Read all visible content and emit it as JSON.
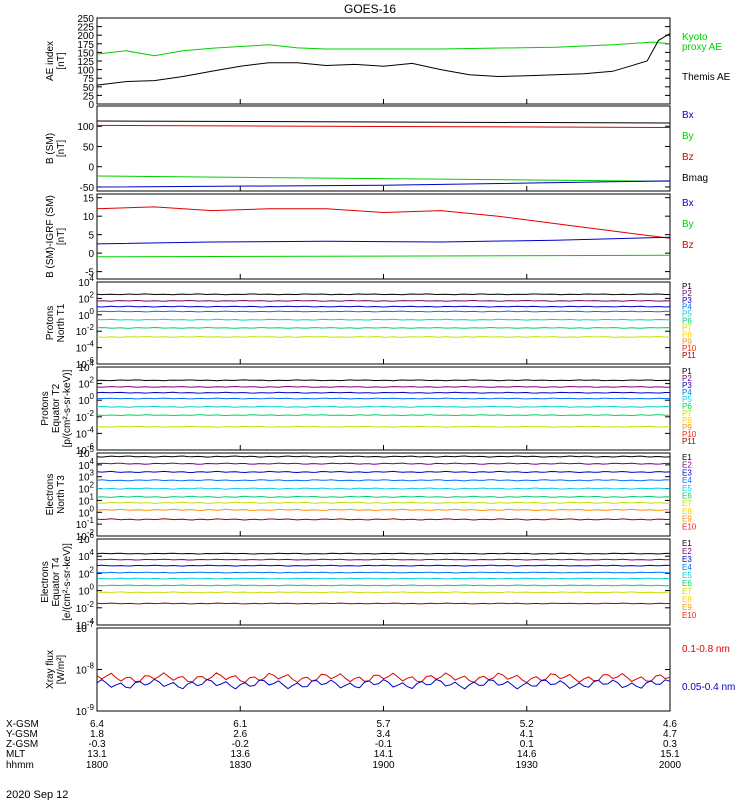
{
  "title": "GOES-16",
  "colors": {
    "black": "#000000",
    "red": "#e00000",
    "green": "#00d000",
    "blue": "#0000c8",
    "P1": "#000000",
    "P2": "#7a007a",
    "P3": "#0000c8",
    "P4": "#0070ff",
    "P5": "#00d0e0",
    "P6": "#00d070",
    "P7": "#c8e000",
    "P8": "#ffd000",
    "P9": "#ff9000",
    "P10": "#ff2000",
    "P11": "#a00000"
  },
  "x_axis": {
    "rows": [
      {
        "label": "X-GSM",
        "values": [
          "6.4",
          "6.1",
          "5.7",
          "5.2",
          "4.6"
        ]
      },
      {
        "label": "Y-GSM",
        "values": [
          "1.8",
          "2.6",
          "3.4",
          "4.1",
          "4.7"
        ]
      },
      {
        "label": "Z-GSM",
        "values": [
          "-0.3",
          "-0.2",
          "-0.1",
          "0.1",
          "0.3"
        ]
      },
      {
        "label": "MLT",
        "values": [
          "13.1",
          "13.6",
          "14.1",
          "14.6",
          "15.1"
        ]
      },
      {
        "label": "hhmm",
        "values": [
          "1800",
          "1830",
          "1900",
          "1930",
          "2000"
        ]
      }
    ],
    "date": "2020 Sep 12"
  },
  "chart_data": [
    {
      "type": "line",
      "ylabel": [
        "AE index",
        "[nT]"
      ],
      "ylim": [
        0,
        250
      ],
      "yticks": [
        "0",
        "25",
        "50",
        "75",
        "100",
        "125",
        "150",
        "175",
        "200",
        "225",
        "250"
      ],
      "legend": [
        {
          "text": "Kyoto",
          "color": "green"
        },
        {
          "text": "proxy AE",
          "color": "green"
        },
        {
          "text": "Themis AE",
          "color": "black"
        }
      ],
      "series": [
        {
          "name": "Kyoto proxy AE",
          "color": "green",
          "x": [
            0,
            0.05,
            0.1,
            0.15,
            0.2,
            0.3,
            0.35,
            0.4,
            0.6,
            0.8,
            0.9,
            0.97,
            1
          ],
          "y": [
            145,
            155,
            140,
            155,
            162,
            172,
            163,
            160,
            160,
            165,
            172,
            180,
            175
          ]
        },
        {
          "name": "Themis AE",
          "color": "black",
          "x": [
            0,
            0.05,
            0.1,
            0.15,
            0.2,
            0.25,
            0.3,
            0.35,
            0.4,
            0.45,
            0.5,
            0.55,
            0.6,
            0.65,
            0.7,
            0.75,
            0.8,
            0.85,
            0.9,
            0.93,
            0.96,
            0.98,
            1
          ],
          "y": [
            55,
            65,
            68,
            80,
            95,
            110,
            120,
            120,
            112,
            115,
            110,
            118,
            100,
            85,
            80,
            82,
            85,
            88,
            95,
            110,
            125,
            185,
            205
          ]
        }
      ]
    },
    {
      "type": "line",
      "ylabel": [
        "B (SM)",
        "[nT]"
      ],
      "ylim": [
        -60,
        150
      ],
      "yticks": [
        "-50",
        "0",
        "50",
        "100"
      ],
      "ytick_values": [
        -50,
        0,
        50,
        100
      ],
      "legend": [
        {
          "text": "Bx",
          "color": "blue"
        },
        {
          "text": "By",
          "color": "green"
        },
        {
          "text": "Bz",
          "color": "red"
        },
        {
          "text": "Bmag",
          "color": "black"
        }
      ],
      "series": [
        {
          "name": "Bmag",
          "color": "black",
          "x": [
            0,
            1
          ],
          "y": [
            113,
            108
          ]
        },
        {
          "name": "Bz",
          "color": "red",
          "x": [
            0,
            1
          ],
          "y": [
            102,
            97
          ]
        },
        {
          "name": "By",
          "color": "green",
          "x": [
            0,
            1
          ],
          "y": [
            -23,
            -36
          ]
        },
        {
          "name": "Bx",
          "color": "blue",
          "x": [
            0,
            0.5,
            1
          ],
          "y": [
            -50,
            -46,
            -35
          ]
        }
      ]
    },
    {
      "type": "line",
      "ylabel": [
        "B (SM)-IGRF (SM)",
        "[nT]"
      ],
      "ylim": [
        -7,
        16
      ],
      "yticks": [
        "-5",
        "0",
        "5",
        "10",
        "15"
      ],
      "ytick_values": [
        -5,
        0,
        5,
        10,
        15
      ],
      "legend": [
        {
          "text": "Bx",
          "color": "blue"
        },
        {
          "text": "By",
          "color": "green"
        },
        {
          "text": "Bz",
          "color": "red"
        }
      ],
      "series": [
        {
          "name": "Bz",
          "color": "red",
          "x": [
            0,
            0.1,
            0.2,
            0.3,
            0.4,
            0.5,
            0.6,
            0.7,
            0.8,
            0.9,
            1
          ],
          "y": [
            12,
            12.5,
            11.5,
            12,
            12,
            11,
            11.5,
            10,
            8,
            6,
            4
          ]
        },
        {
          "name": "Bx",
          "color": "blue",
          "x": [
            0,
            0.2,
            0.4,
            0.6,
            0.8,
            1
          ],
          "y": [
            2.5,
            3,
            3.2,
            3,
            3.5,
            4.3
          ]
        },
        {
          "name": "By",
          "color": "green",
          "x": [
            0,
            0.5,
            1
          ],
          "y": [
            -1,
            -0.8,
            -0.6
          ]
        }
      ]
    },
    {
      "type": "line",
      "log": true,
      "ylabel": [
        "Protons",
        "North T1"
      ],
      "ylim_exp": [
        -6,
        4
      ],
      "yticks_exp": [
        4,
        2,
        0,
        -2,
        -4,
        -6
      ],
      "legend_labels": [
        "P1",
        "P2",
        "P3",
        "P4",
        "P5",
        "P6",
        "P7",
        "P8",
        "P9",
        "P10",
        "P11"
      ],
      "series": [
        {
          "name": "P1",
          "color": "P1",
          "level": 2.5
        },
        {
          "name": "P2",
          "color": "P2",
          "level": 1.7
        },
        {
          "name": "P3",
          "color": "P3",
          "level": 1.0
        },
        {
          "name": "P4",
          "color": "P4",
          "level": 0.4
        },
        {
          "name": "P5",
          "color": "P5",
          "level": -0.6
        },
        {
          "name": "P6",
          "color": "P6",
          "level": -1.6
        },
        {
          "name": "P8",
          "color": "P7",
          "level": -2.7
        }
      ]
    },
    {
      "type": "line",
      "log": true,
      "ylabel": [
        "Protons",
        "Equator T2",
        "[p/(cm²-s-sr-keV)]"
      ],
      "ylim_exp": [
        -6,
        4
      ],
      "yticks_exp": [
        4,
        2,
        0,
        -2,
        -4,
        -6
      ],
      "legend_labels": [
        "P1",
        "P2",
        "P3",
        "P4",
        "P5",
        "P6",
        "P7",
        "P8",
        "P9",
        "P10",
        "P11"
      ],
      "series": [
        {
          "name": "P1",
          "color": "P1",
          "level": 2.4
        },
        {
          "name": "P2",
          "color": "P2",
          "level": 1.6
        },
        {
          "name": "P3",
          "color": "P3",
          "level": 0.9
        },
        {
          "name": "P4",
          "color": "P4",
          "level": 0.2
        },
        {
          "name": "P5",
          "color": "P5",
          "level": -0.8
        },
        {
          "name": "P6",
          "color": "P6",
          "level": -1.8
        },
        {
          "name": "P8",
          "color": "P7",
          "level": -3.2
        }
      ]
    },
    {
      "type": "line",
      "log": true,
      "ylabel": [
        "Electrons",
        "North T3"
      ],
      "ylim_exp": [
        -2,
        5
      ],
      "yticks_exp": [
        5,
        4,
        3,
        2,
        1,
        0,
        -1,
        -2
      ],
      "legend_labels": [
        "E1",
        "E2",
        "E3",
        "E4",
        "E5",
        "E6",
        "E7",
        "E8",
        "E9",
        "E10"
      ],
      "series": [
        {
          "name": "E1",
          "color": "P1",
          "level": 4.7
        },
        {
          "name": "E2",
          "color": "P2",
          "level": 4.1
        },
        {
          "name": "E3",
          "color": "P3",
          "level": 3.4
        },
        {
          "name": "E4",
          "color": "P4",
          "level": 2.7
        },
        {
          "name": "E5",
          "color": "P5",
          "level": 2.0
        },
        {
          "name": "E6",
          "color": "P6",
          "level": 1.3
        },
        {
          "name": "E7",
          "color": "P7",
          "level": 0.8
        },
        {
          "name": "E8",
          "color": "P9",
          "level": 0.2
        },
        {
          "name": "E9",
          "color": "P11",
          "level": -0.6
        }
      ]
    },
    {
      "type": "line",
      "log": true,
      "ylabel": [
        "Electrons",
        "Equator T4",
        "[e/(cm²-s-sr-keV)]"
      ],
      "ylim_exp": [
        -4,
        6
      ],
      "yticks_exp": [
        6,
        4,
        2,
        0,
        -2,
        -4
      ],
      "legend_labels": [
        "E1",
        "E2",
        "E3",
        "E4",
        "E5",
        "E6",
        "E7",
        "E8",
        "E9",
        "E10"
      ],
      "series": [
        {
          "name": "E1",
          "color": "P1",
          "level": 4.3
        },
        {
          "name": "E2",
          "color": "P2",
          "level": 3.6
        },
        {
          "name": "E3",
          "color": "P3",
          "level": 2.9
        },
        {
          "name": "E4",
          "color": "P4",
          "level": 2.1
        },
        {
          "name": "E5",
          "color": "P5",
          "level": 1.4
        },
        {
          "name": "E6",
          "color": "P6",
          "level": 0.6
        },
        {
          "name": "E7",
          "color": "P7",
          "level": -0.2
        },
        {
          "name": "E9",
          "color": "P11",
          "level": -1.5
        }
      ]
    },
    {
      "type": "line",
      "log": true,
      "ylabel": [
        "Xray flux",
        "[W/m²]"
      ],
      "ylim_exp": [
        -9,
        -7
      ],
      "yticks_exp": [
        -7,
        -8,
        -9
      ],
      "legend": [
        {
          "text": "0.1-0.8 nm",
          "color": "red"
        },
        {
          "text": "0.05-0.4 nm",
          "color": "blue"
        }
      ],
      "series": [
        {
          "name": "0.1-0.8 nm",
          "color": "red",
          "level": -8.2
        },
        {
          "name": "0.05-0.4 nm",
          "color": "blue",
          "level": -8.35
        }
      ]
    }
  ]
}
